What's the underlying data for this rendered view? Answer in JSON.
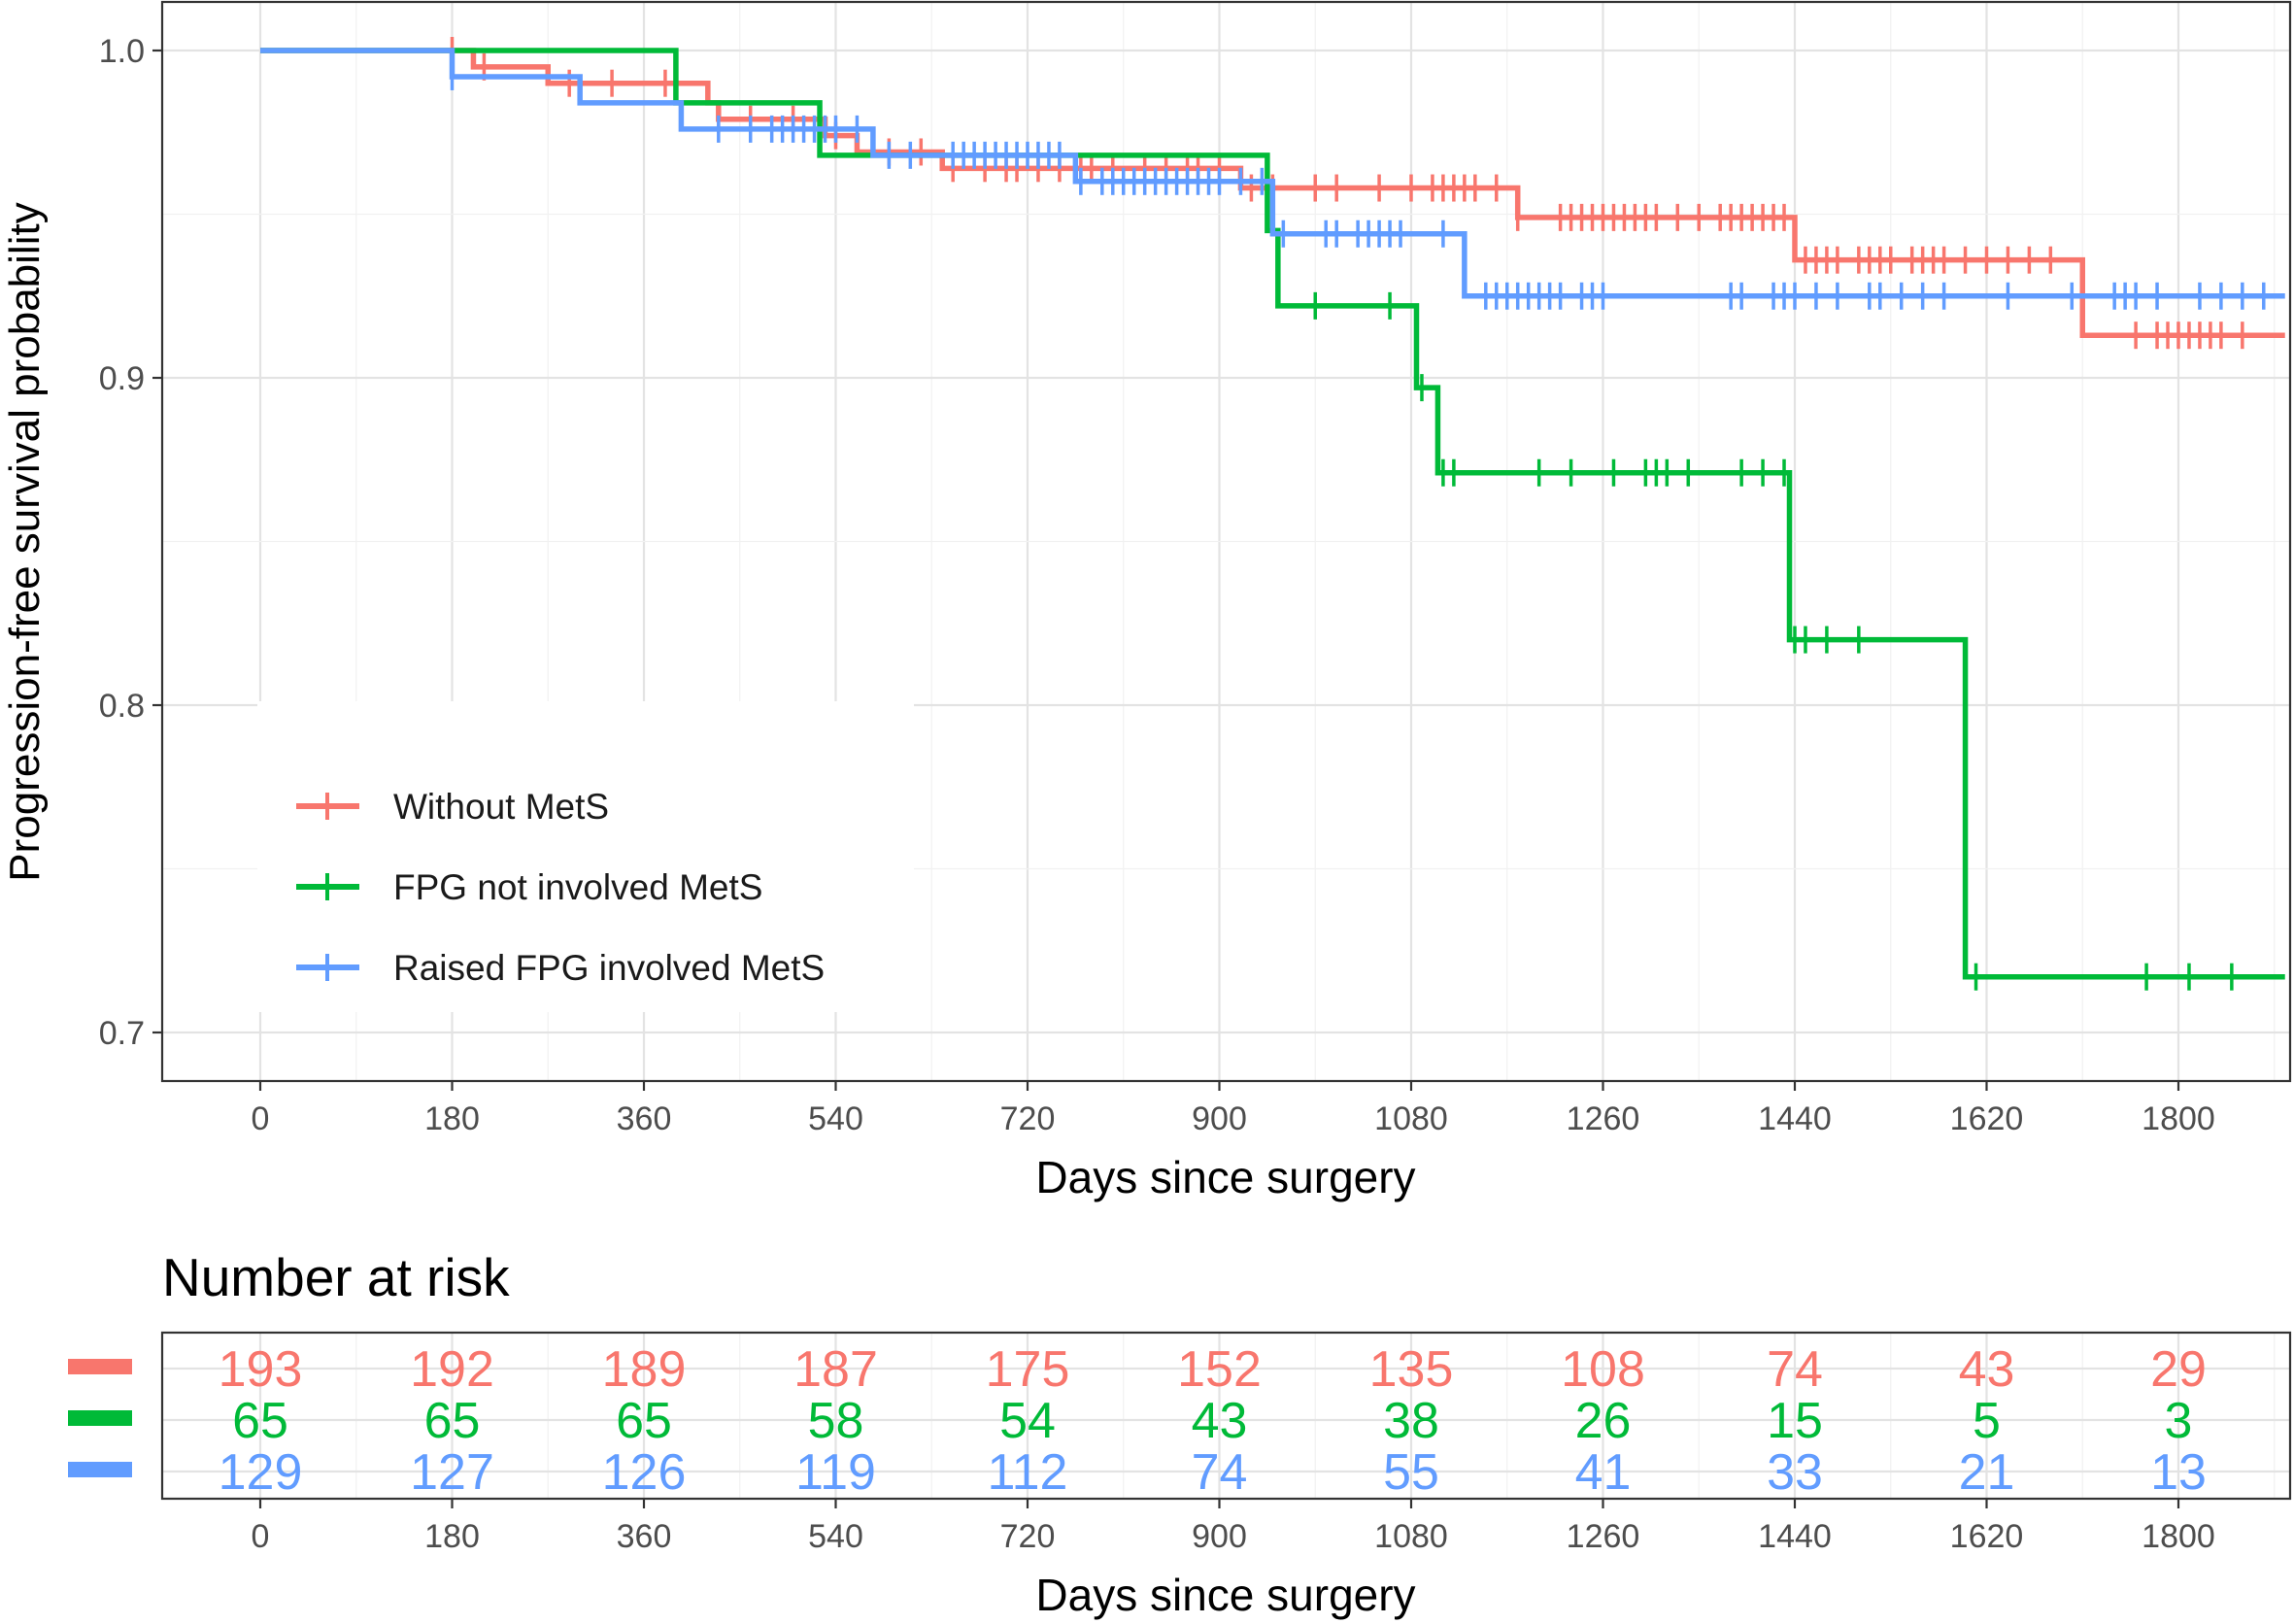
{
  "chart_data": [
    {
      "type": "line",
      "subtype": "kaplan-meier",
      "title": "",
      "xlabel": "Days since surgery",
      "ylabel": "Progression-free survival probability",
      "xlim": [
        -50,
        1900
      ],
      "ylim": [
        0.688,
        1.015
      ],
      "x_ticks": [
        0,
        180,
        360,
        540,
        720,
        900,
        1080,
        1260,
        1440,
        1620,
        1800
      ],
      "y_ticks": [
        0.7,
        0.8,
        0.9,
        1.0
      ],
      "y_tick_labels": [
        "0.7",
        "0.8",
        "0.9",
        "1.0"
      ],
      "grid": true,
      "legend_position": "bottom-left inside",
      "series": [
        {
          "name": "Without MetS",
          "color": "#F8766D",
          "steps": [
            [
              0,
              1.0
            ],
            [
              200,
              0.995
            ],
            [
              270,
              0.99
            ],
            [
              420,
              0.984
            ],
            [
              430,
              0.979
            ],
            [
              530,
              0.974
            ],
            [
              560,
              0.969
            ],
            [
              640,
              0.964
            ],
            [
              920,
              0.958
            ],
            [
              1180,
              0.949
            ],
            [
              1440,
              0.936
            ],
            [
              1710,
              0.913
            ],
            [
              1900,
              0.913
            ]
          ],
          "censor": [
            180,
            210,
            290,
            330,
            380,
            430,
            460,
            500,
            540,
            590,
            620,
            650,
            680,
            700,
            710,
            730,
            750,
            770,
            780,
            800,
            830,
            850,
            870,
            880,
            900,
            930,
            950,
            990,
            1010,
            1050,
            1080,
            1100,
            1110,
            1120,
            1130,
            1140,
            1160,
            1180,
            1220,
            1230,
            1240,
            1250,
            1260,
            1270,
            1280,
            1290,
            1300,
            1310,
            1330,
            1350,
            1370,
            1380,
            1390,
            1400,
            1410,
            1420,
            1430,
            1450,
            1460,
            1470,
            1480,
            1500,
            1510,
            1520,
            1530,
            1550,
            1560,
            1570,
            1580,
            1600,
            1620,
            1640,
            1660,
            1680,
            1760,
            1780,
            1790,
            1800,
            1810,
            1820,
            1830,
            1840,
            1860
          ]
        },
        {
          "name": "FPG not involved MetS",
          "color": "#00BA38",
          "steps": [
            [
              0,
              1.0
            ],
            [
              390,
              0.984
            ],
            [
              525,
              0.968
            ],
            [
              945,
              0.945
            ],
            [
              955,
              0.922
            ],
            [
              1085,
              0.897
            ],
            [
              1105,
              0.871
            ],
            [
              1435,
              0.82
            ],
            [
              1600,
              0.717
            ],
            [
              1900,
              0.717
            ]
          ],
          "censor": [
            990,
            1060,
            1090,
            1110,
            1120,
            1200,
            1230,
            1270,
            1300,
            1310,
            1320,
            1340,
            1390,
            1410,
            1430,
            1440,
            1450,
            1470,
            1500,
            1610,
            1770,
            1810,
            1850
          ]
        },
        {
          "name": "Raised FPG involved MetS",
          "color": "#619CFF",
          "steps": [
            [
              0,
              1.0
            ],
            [
              180,
              0.992
            ],
            [
              300,
              0.984
            ],
            [
              395,
              0.976
            ],
            [
              575,
              0.968
            ],
            [
              765,
              0.96
            ],
            [
              950,
              0.944
            ],
            [
              1130,
              0.925
            ],
            [
              1900,
              0.925
            ]
          ],
          "censor": [
            180,
            430,
            460,
            480,
            490,
            500,
            510,
            520,
            530,
            540,
            560,
            590,
            610,
            650,
            660,
            670,
            680,
            690,
            700,
            710,
            720,
            730,
            740,
            750,
            770,
            790,
            800,
            810,
            820,
            830,
            840,
            850,
            860,
            870,
            880,
            890,
            900,
            920,
            940,
            960,
            1000,
            1010,
            1030,
            1040,
            1050,
            1060,
            1070,
            1110,
            1150,
            1160,
            1170,
            1180,
            1190,
            1200,
            1210,
            1220,
            1240,
            1250,
            1260,
            1380,
            1390,
            1420,
            1430,
            1440,
            1460,
            1480,
            1510,
            1520,
            1540,
            1560,
            1580,
            1640,
            1700,
            1740,
            1750,
            1760,
            1780,
            1820,
            1840,
            1860,
            1880
          ]
        }
      ]
    },
    {
      "type": "table",
      "title": "Number at risk",
      "xlabel": "Days since surgery",
      "x_ticks": [
        0,
        180,
        360,
        540,
        720,
        900,
        1080,
        1260,
        1440,
        1620,
        1800
      ],
      "rows": [
        {
          "name": "Without MetS",
          "color": "#F8766D",
          "values": [
            193,
            192,
            189,
            187,
            175,
            152,
            135,
            108,
            74,
            43,
            29
          ]
        },
        {
          "name": "FPG not involved MetS",
          "color": "#00BA38",
          "values": [
            65,
            65,
            65,
            58,
            54,
            43,
            38,
            26,
            15,
            5,
            3
          ]
        },
        {
          "name": "Raised FPG involved MetS",
          "color": "#619CFF",
          "values": [
            129,
            127,
            126,
            119,
            112,
            74,
            55,
            41,
            33,
            21,
            13
          ]
        }
      ]
    }
  ]
}
